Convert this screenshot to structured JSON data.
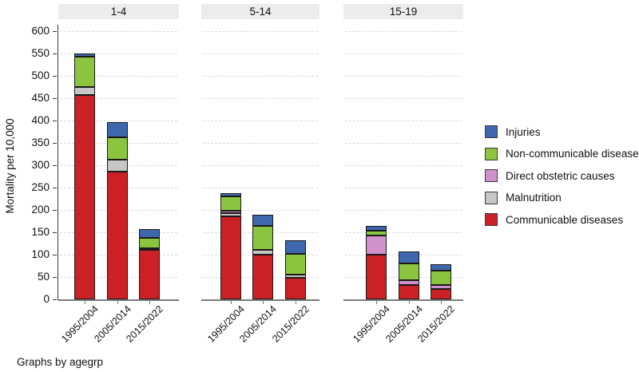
{
  "chart_data": {
    "type": "bar",
    "stacked": true,
    "title": "",
    "xlabel": "",
    "ylabel": "Mortality per 10,000",
    "ylim": [
      0,
      600
    ],
    "yticks": [
      0,
      50,
      100,
      150,
      200,
      250,
      300,
      350,
      400,
      450,
      500,
      550,
      600
    ],
    "grid": "horizontal dashed",
    "note": "Graphs by agegrp",
    "categories": [
      "1995/2004",
      "2005/2014",
      "2015/2022"
    ],
    "stack_order_bottom_to_top": [
      "communicable",
      "malnutrition",
      "obstetric",
      "ncd",
      "injuries"
    ],
    "legend": {
      "position": "right",
      "items": [
        {
          "key": "injuries",
          "label": "Injuries",
          "color": "#3e67ad"
        },
        {
          "key": "ncd",
          "label": "Non-communicable diseases",
          "color": "#8bc53f"
        },
        {
          "key": "obstetric",
          "label": "Direct obstetric causes",
          "color": "#d192cb"
        },
        {
          "key": "malnutrition",
          "label": "Malnutrition",
          "color": "#c6c6c6"
        },
        {
          "key": "communicable",
          "label": "Communicable diseases",
          "color": "#cc2027"
        }
      ]
    },
    "panels": [
      {
        "title": "1-4",
        "bars": [
          {
            "category": "1995/2004",
            "values": {
              "communicable": 457,
              "malnutrition": 18,
              "obstetric": 0,
              "ncd": 67,
              "injuries": 8
            },
            "total": 550
          },
          {
            "category": "2005/2014",
            "values": {
              "communicable": 286,
              "malnutrition": 27,
              "obstetric": 0,
              "ncd": 50,
              "injuries": 34
            },
            "total": 397
          },
          {
            "category": "2015/2022",
            "values": {
              "communicable": 110,
              "malnutrition": 5,
              "obstetric": 0,
              "ncd": 22,
              "injuries": 21
            },
            "total": 158
          }
        ]
      },
      {
        "title": "5-14",
        "bars": [
          {
            "category": "1995/2004",
            "values": {
              "communicable": 186,
              "malnutrition": 7,
              "obstetric": 6,
              "ncd": 32,
              "injuries": 6
            },
            "total": 237
          },
          {
            "category": "2005/2014",
            "values": {
              "communicable": 100,
              "malnutrition": 10,
              "obstetric": 0,
              "ncd": 54,
              "injuries": 25
            },
            "total": 189
          },
          {
            "category": "2015/2022",
            "values": {
              "communicable": 49,
              "malnutrition": 7,
              "obstetric": 0,
              "ncd": 45,
              "injuries": 32
            },
            "total": 133
          }
        ]
      },
      {
        "title": "15-19",
        "bars": [
          {
            "category": "1995/2004",
            "values": {
              "communicable": 100,
              "malnutrition": 0,
              "obstetric": 42,
              "ncd": 11,
              "injuries": 12
            },
            "total": 165
          },
          {
            "category": "2005/2014",
            "values": {
              "communicable": 33,
              "malnutrition": 0,
              "obstetric": 10,
              "ncd": 37,
              "injuries": 27
            },
            "total": 107
          },
          {
            "category": "2015/2022",
            "values": {
              "communicable": 23,
              "malnutrition": 0,
              "obstetric": 9,
              "ncd": 33,
              "injuries": 13
            },
            "total": 78
          }
        ]
      }
    ]
  }
}
